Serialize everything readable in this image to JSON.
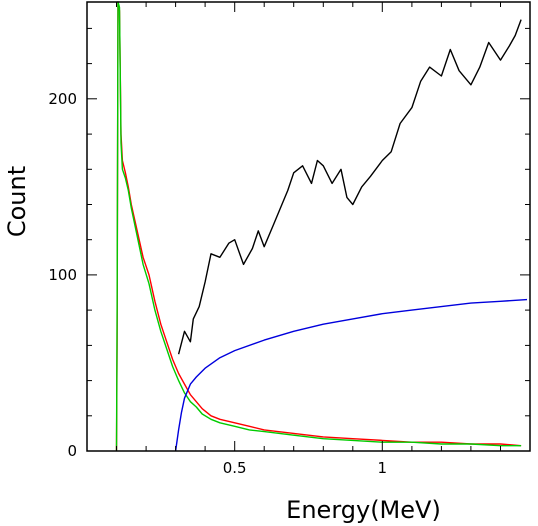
{
  "chart_data": {
    "type": "line",
    "title": "",
    "xlabel": "Energy(MeV)",
    "ylabel": "Count",
    "xlim": [
      0.0,
      1.5
    ],
    "ylim": [
      0,
      255
    ],
    "x_ticks": [
      0.5,
      1
    ],
    "x_tick_labels": [
      "0.5",
      "1"
    ],
    "y_ticks": [
      0,
      100,
      200
    ],
    "y_tick_labels": [
      "0",
      "100",
      "200"
    ],
    "grid": false,
    "legend": "none",
    "series": [
      {
        "color": "#000000",
        "x": [
          0.31,
          0.33,
          0.35,
          0.36,
          0.38,
          0.4,
          0.42,
          0.45,
          0.48,
          0.5,
          0.53,
          0.56,
          0.58,
          0.6,
          0.63,
          0.66,
          0.68,
          0.7,
          0.73,
          0.76,
          0.78,
          0.8,
          0.83,
          0.86,
          0.88,
          0.9,
          0.93,
          0.96,
          1.0,
          1.03,
          1.06,
          1.1,
          1.13,
          1.16,
          1.2,
          1.23,
          1.26,
          1.3,
          1.33,
          1.36,
          1.4,
          1.43,
          1.45,
          1.47
        ],
        "values": [
          55,
          68,
          62,
          75,
          82,
          96,
          112,
          110,
          118,
          120,
          106,
          115,
          125,
          116,
          128,
          140,
          148,
          158,
          162,
          152,
          165,
          162,
          152,
          160,
          144,
          140,
          150,
          156,
          165,
          170,
          186,
          195,
          210,
          218,
          213,
          228,
          216,
          208,
          218,
          232,
          222,
          230,
          236,
          245
        ]
      },
      {
        "color": "#ff0000",
        "x": [
          0.1,
          0.102,
          0.105,
          0.11,
          0.115,
          0.12,
          0.13,
          0.14,
          0.15,
          0.17,
          0.19,
          0.21,
          0.23,
          0.25,
          0.27,
          0.29,
          0.31,
          0.33,
          0.35,
          0.37,
          0.39,
          0.42,
          0.45,
          0.5,
          0.55,
          0.6,
          0.7,
          0.8,
          0.9,
          1.0,
          1.1,
          1.2,
          1.3,
          1.4,
          1.47
        ],
        "values": [
          0,
          60,
          255,
          250,
          180,
          165,
          158,
          150,
          140,
          125,
          110,
          100,
          85,
          72,
          62,
          52,
          44,
          38,
          32,
          28,
          24,
          20,
          18,
          16,
          14,
          12,
          10,
          8,
          7,
          6,
          5,
          5,
          4,
          4,
          3
        ]
      },
      {
        "color": "#00cc00",
        "x": [
          0.1,
          0.102,
          0.105,
          0.11,
          0.115,
          0.12,
          0.13,
          0.14,
          0.15,
          0.17,
          0.19,
          0.21,
          0.23,
          0.25,
          0.27,
          0.29,
          0.31,
          0.33,
          0.35,
          0.37,
          0.39,
          0.42,
          0.45,
          0.5,
          0.55,
          0.6,
          0.7,
          0.8,
          0.9,
          1.0,
          1.1,
          1.2,
          1.3,
          1.4,
          1.47
        ],
        "values": [
          0,
          80,
          255,
          252,
          175,
          160,
          155,
          148,
          138,
          122,
          106,
          95,
          80,
          68,
          58,
          48,
          40,
          33,
          28,
          25,
          21,
          18,
          16,
          14,
          12,
          11,
          9,
          7,
          6,
          5,
          5,
          4,
          4,
          3,
          3
        ]
      },
      {
        "color": "#0000dd",
        "x": [
          0.3,
          0.31,
          0.32,
          0.33,
          0.35,
          0.37,
          0.4,
          0.45,
          0.5,
          0.6,
          0.7,
          0.8,
          0.9,
          1.0,
          1.1,
          1.2,
          1.3,
          1.4,
          1.49
        ],
        "values": [
          0,
          12,
          22,
          30,
          38,
          42,
          47,
          53,
          57,
          63,
          68,
          72,
          75,
          78,
          80,
          82,
          84,
          85,
          86
        ]
      }
    ]
  }
}
